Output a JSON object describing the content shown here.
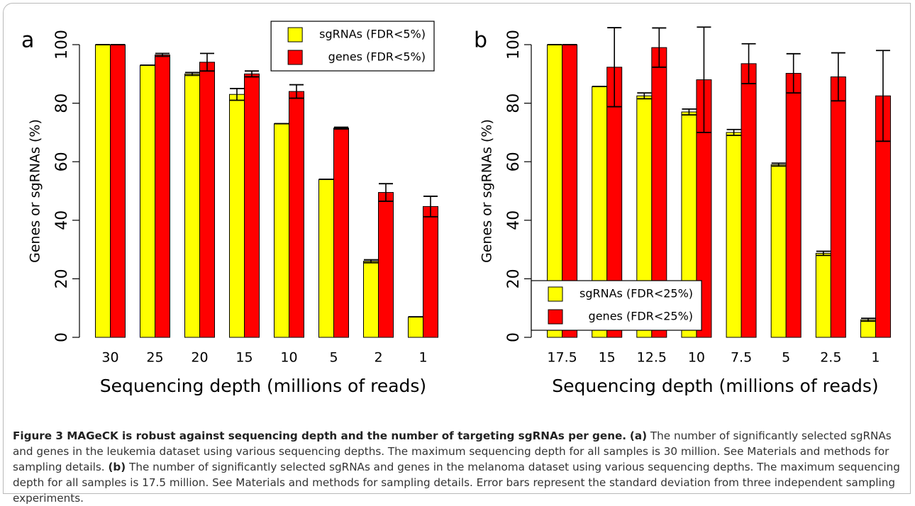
{
  "chart_data": [
    {
      "type": "bar",
      "panel": "a",
      "ylabel": "Genes or sgRNAs  (%)",
      "xlabel": "Sequencing depth (millions of reads)",
      "categories": [
        "30",
        "25",
        "20",
        "15",
        "10",
        "5",
        "2",
        "1"
      ],
      "series": [
        {
          "name": "sgRNAs (FDR<5%)",
          "color": "#ffff00",
          "values": [
            100,
            93,
            90,
            83,
            73,
            54,
            26,
            7
          ],
          "errors": [
            0,
            0,
            0.5,
            2,
            0,
            0,
            0.5,
            0
          ]
        },
        {
          "name": "genes (FDR<5%)",
          "color": "#ff0000",
          "values": [
            100,
            96.5,
            94,
            90,
            84,
            71.5,
            49.5,
            44.7
          ],
          "errors": [
            0,
            0.5,
            3,
            1,
            2.3,
            0.3,
            3,
            3.5
          ]
        }
      ],
      "ylim": [
        0,
        100
      ],
      "yticks": [
        0,
        20,
        40,
        60,
        80,
        100
      ],
      "legend_position": "top-right"
    },
    {
      "type": "bar",
      "panel": "b",
      "ylabel": "Genes or sgRNAs  (%)",
      "xlabel": "Sequencing depth (millions of reads)",
      "categories": [
        "17.5",
        "15",
        "12.5",
        "10",
        "7.5",
        "5",
        "2.5",
        "1"
      ],
      "series": [
        {
          "name": "sgRNAs (FDR<25%)",
          "color": "#ffff00",
          "values": [
            100,
            85.7,
            82.5,
            77,
            70,
            59,
            28.7,
            6
          ],
          "errors": [
            0,
            0,
            1,
            1,
            1,
            0.5,
            0.7,
            0.5
          ]
        },
        {
          "name": "genes (FDR<25%)",
          "color": "#ff0000",
          "values": [
            100,
            92.3,
            99,
            88,
            93.5,
            90.2,
            89,
            82.5
          ],
          "errors": [
            0,
            13.5,
            6.7,
            18,
            6.8,
            6.7,
            8.2,
            15.5
          ]
        }
      ],
      "ylim": [
        0,
        100
      ],
      "yticks": [
        0,
        20,
        40,
        60,
        80,
        100
      ],
      "legend_position": "bottom-left"
    }
  ],
  "caption": {
    "title": "Figure 3 MAGeCK is robust against sequencing depth and the number of targeting sgRNAs per gene.",
    "a_label": "(a)",
    "a_text": "The number of significantly selected sgRNAs and genes in the leukemia dataset using various sequencing depths. The maximum sequencing depth for all samples is 30 million. See Materials and methods for sampling details.",
    "b_label": "(b)",
    "b_text": "The number of significantly selected sgRNAs and genes in the melanoma dataset using various sequencing depths. The maximum sequencing depth for all samples is 17.5 million. See Materials and methods for sampling details. Error bars represent the standard deviation from three independent sampling experiments."
  }
}
